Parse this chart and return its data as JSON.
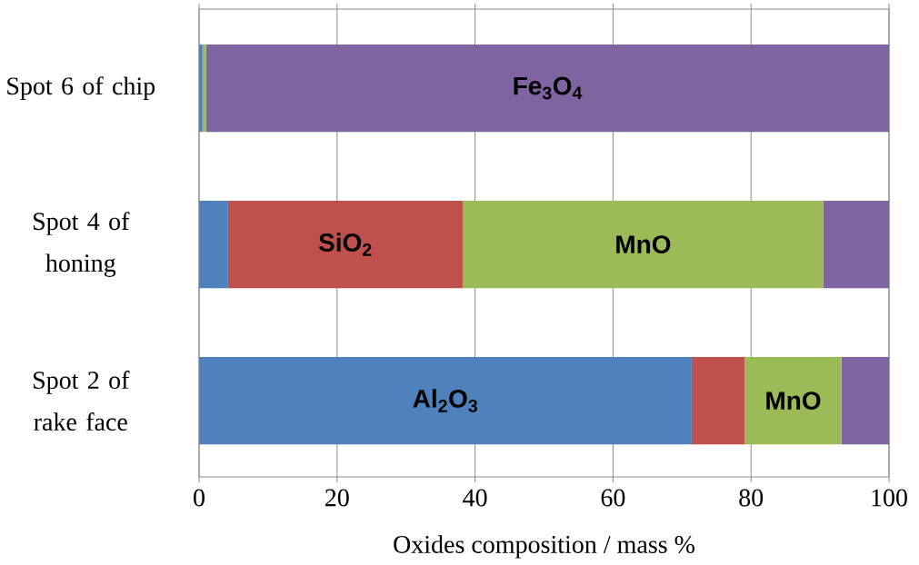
{
  "chart_data": {
    "type": "bar",
    "orientation": "horizontal",
    "stacked": true,
    "xlabel": "Oxides composition  / mass %",
    "categories": [
      "Spot 6 of chip",
      "Spot 4 of honing",
      "Spot 2 of rake face"
    ],
    "series": [
      {
        "name": "Al$_{2}$O$_{3}$",
        "color": "#4f81bd",
        "values": [
          0.5,
          4.2,
          71.4
        ]
      },
      {
        "name": "SiO$_{2}$",
        "color": "#c0504d",
        "values": [
          0,
          34.0,
          7.7
        ]
      },
      {
        "name": "MnO",
        "color": "#9bbb59",
        "values": [
          0.5,
          52.3,
          14.0
        ]
      },
      {
        "name": "Fe$_{3}$O$_{4}$",
        "color": "#8064a2",
        "values": [
          99.0,
          9.5,
          6.9
        ]
      }
    ],
    "xlim": [
      0,
      100
    ],
    "xticks": [
      0,
      20,
      40,
      60,
      80,
      100
    ],
    "grid": "x"
  }
}
